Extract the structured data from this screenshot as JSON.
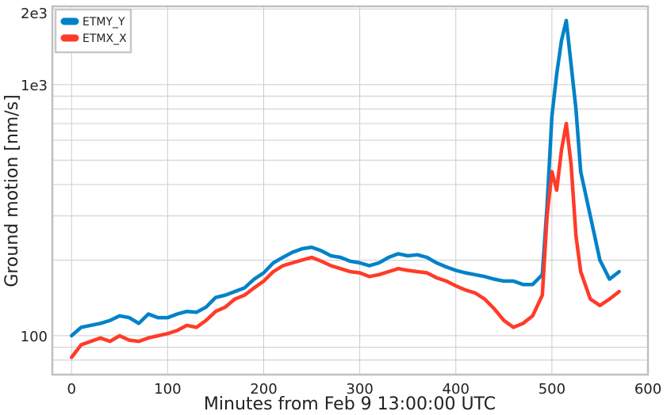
{
  "chart_data": {
    "type": "line",
    "title": "",
    "xlabel": "Minutes from Feb 9 13:00:00 UTC",
    "ylabel": "Ground motion [nm/s]",
    "xlim": [
      -20,
      600
    ],
    "ylim": [
      70,
      2050
    ],
    "yscale": "log",
    "grid": true,
    "legend_position": "top-left",
    "x_ticks": [
      0,
      100,
      200,
      300,
      400,
      500,
      600
    ],
    "x_tick_labels": [
      "0",
      "100",
      "200",
      "300",
      "400",
      "500",
      "600"
    ],
    "y_ticks": [
      100,
      1000,
      2000
    ],
    "y_tick_labels": [
      "100",
      "1e3",
      "2e3"
    ],
    "series": [
      {
        "name": "ETMY_Y",
        "color": "#0082c8",
        "x": [
          0,
          10,
          20,
          30,
          40,
          50,
          60,
          70,
          80,
          90,
          100,
          110,
          120,
          130,
          140,
          150,
          160,
          170,
          180,
          190,
          200,
          210,
          220,
          230,
          240,
          250,
          260,
          270,
          280,
          290,
          300,
          310,
          320,
          330,
          340,
          350,
          360,
          370,
          380,
          390,
          400,
          410,
          420,
          430,
          440,
          450,
          460,
          470,
          480,
          490,
          495,
          500,
          505,
          510,
          515,
          520,
          525,
          530,
          540,
          550,
          560,
          570
        ],
        "y": [
          100,
          108,
          110,
          112,
          115,
          120,
          118,
          112,
          122,
          118,
          118,
          122,
          125,
          124,
          130,
          142,
          145,
          150,
          155,
          168,
          178,
          195,
          205,
          215,
          222,
          225,
          218,
          208,
          205,
          198,
          195,
          190,
          195,
          205,
          212,
          208,
          210,
          205,
          195,
          188,
          182,
          178,
          175,
          172,
          168,
          165,
          165,
          160,
          160,
          175,
          330,
          750,
          1100,
          1500,
          1800,
          1200,
          800,
          450,
          300,
          200,
          168,
          180
        ]
      },
      {
        "name": "ETMX_X",
        "color": "#ff3b28",
        "x": [
          0,
          10,
          20,
          30,
          40,
          50,
          60,
          70,
          80,
          90,
          100,
          110,
          120,
          130,
          140,
          150,
          160,
          170,
          180,
          190,
          200,
          210,
          220,
          230,
          240,
          250,
          260,
          270,
          280,
          290,
          300,
          310,
          320,
          330,
          340,
          350,
          360,
          370,
          380,
          390,
          400,
          410,
          420,
          430,
          440,
          450,
          460,
          470,
          480,
          490,
          495,
          500,
          505,
          510,
          515,
          520,
          525,
          530,
          540,
          550,
          560,
          570
        ],
        "y": [
          82,
          92,
          95,
          98,
          95,
          100,
          96,
          95,
          98,
          100,
          102,
          105,
          110,
          108,
          115,
          125,
          130,
          140,
          145,
          155,
          165,
          180,
          190,
          195,
          200,
          205,
          198,
          190,
          185,
          180,
          178,
          172,
          175,
          180,
          185,
          182,
          180,
          178,
          170,
          165,
          158,
          152,
          148,
          140,
          128,
          115,
          108,
          112,
          120,
          145,
          300,
          450,
          380,
          550,
          700,
          480,
          250,
          180,
          140,
          132,
          140,
          150
        ]
      }
    ]
  }
}
